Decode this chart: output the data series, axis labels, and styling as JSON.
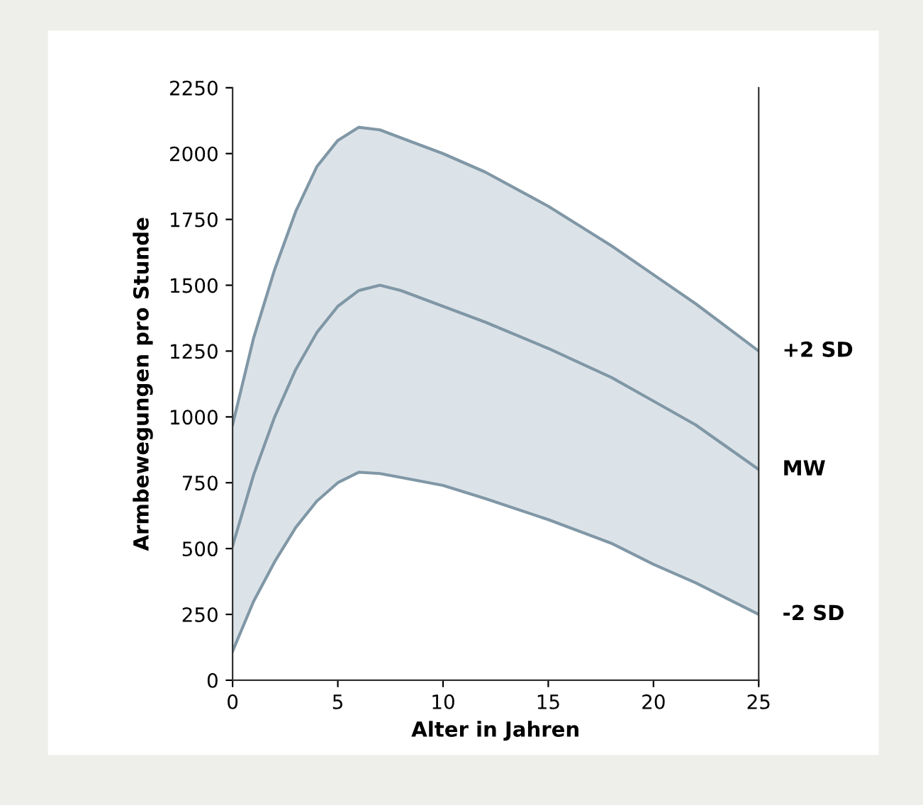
{
  "chart_data": {
    "type": "line",
    "xlabel": "Alter in Jahren",
    "ylabel": "Armbewegungen pro Stunde",
    "x": [
      0,
      1,
      2,
      3,
      4,
      5,
      6,
      7,
      8,
      10,
      12,
      15,
      18,
      20,
      22,
      25
    ],
    "series": [
      {
        "name": "+2 SD",
        "color": "#8097a6",
        "values": [
          970,
          1300,
          1560,
          1780,
          1950,
          2050,
          2100,
          2090,
          2060,
          2000,
          1930,
          1800,
          1650,
          1540,
          1430,
          1250
        ]
      },
      {
        "name": "MW",
        "color": "#8097a6",
        "values": [
          510,
          780,
          1000,
          1180,
          1320,
          1420,
          1480,
          1500,
          1480,
          1420,
          1360,
          1260,
          1150,
          1060,
          970,
          800
        ],
        "lower": [
          110,
          300,
          450,
          580,
          680,
          750,
          790,
          785,
          770,
          740,
          690,
          610,
          520,
          440,
          370,
          250
        ],
        "upper": [
          970,
          1300,
          1560,
          1780,
          1950,
          2050,
          2100,
          2090,
          2060,
          2000,
          1930,
          1800,
          1650,
          1540,
          1430,
          1250
        ]
      },
      {
        "name": "-2 SD",
        "color": "#8097a6",
        "values": [
          110,
          300,
          450,
          580,
          680,
          750,
          790,
          785,
          770,
          740,
          690,
          610,
          520,
          440,
          370,
          250
        ]
      }
    ],
    "xlim": [
      0,
      25
    ],
    "ylim": [
      0,
      2250
    ],
    "xticks": [
      0,
      5,
      10,
      15,
      20,
      25
    ],
    "yticks": [
      0,
      250,
      500,
      750,
      1000,
      1250,
      1500,
      1750,
      2000,
      2250
    ],
    "grid": false,
    "legend": false,
    "marker": "none",
    "line_style": "solid"
  }
}
